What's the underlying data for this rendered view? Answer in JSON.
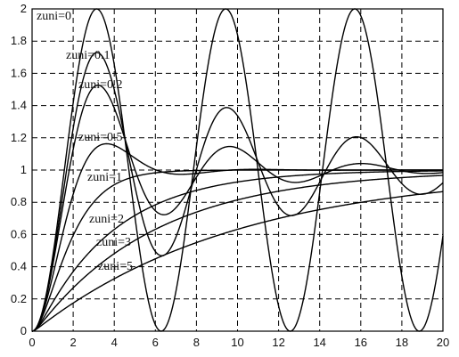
{
  "chart_data": {
    "type": "line",
    "title": "",
    "xlabel": "",
    "ylabel": "",
    "xlim": [
      0,
      20
    ],
    "ylim": [
      0,
      2
    ],
    "x_ticks": [
      0,
      2,
      4,
      6,
      8,
      10,
      12,
      14,
      16,
      18,
      20
    ],
    "y_ticks": [
      0,
      0.2,
      0.4,
      0.6,
      0.8,
      1,
      1.2,
      1.4,
      1.6,
      1.8,
      2
    ],
    "x_tick_labels": [
      "0",
      "2",
      "4",
      "6",
      "8",
      "10",
      "12",
      "14",
      "16",
      "18",
      "20"
    ],
    "y_tick_labels": [
      "0",
      "0.2",
      "0.4",
      "0.6",
      "0.8",
      "1",
      "1.2",
      "1.4",
      "1.6",
      "1.8",
      "2"
    ],
    "grid": "dashed",
    "line_color": "#000000",
    "series": [
      {
        "name": "zuni=0",
        "zeta": 0
      },
      {
        "name": "zuni=0.1",
        "zeta": 0.1
      },
      {
        "name": "zuni=0.2",
        "zeta": 0.2
      },
      {
        "name": "zuni=0.5",
        "zeta": 0.5
      },
      {
        "name": "zuni=1",
        "zeta": 1
      },
      {
        "name": "zuni=2",
        "zeta": 2
      },
      {
        "name": "zuni=3",
        "zeta": 3
      },
      {
        "name": "zuni=5",
        "zeta": 5
      }
    ],
    "annotations": [
      {
        "text": "zuni=0",
        "series": 0
      },
      {
        "text": "zuni=0.1",
        "series": 1
      },
      {
        "text": "zuni=0.2",
        "series": 2
      },
      {
        "text": "zuni=0.5",
        "series": 3
      },
      {
        "text": "zuni=1",
        "series": 4
      },
      {
        "text": "zuni=2",
        "series": 5
      },
      {
        "text": "zuni=3",
        "series": 6
      },
      {
        "text": "zuni=5",
        "series": 7
      }
    ]
  }
}
